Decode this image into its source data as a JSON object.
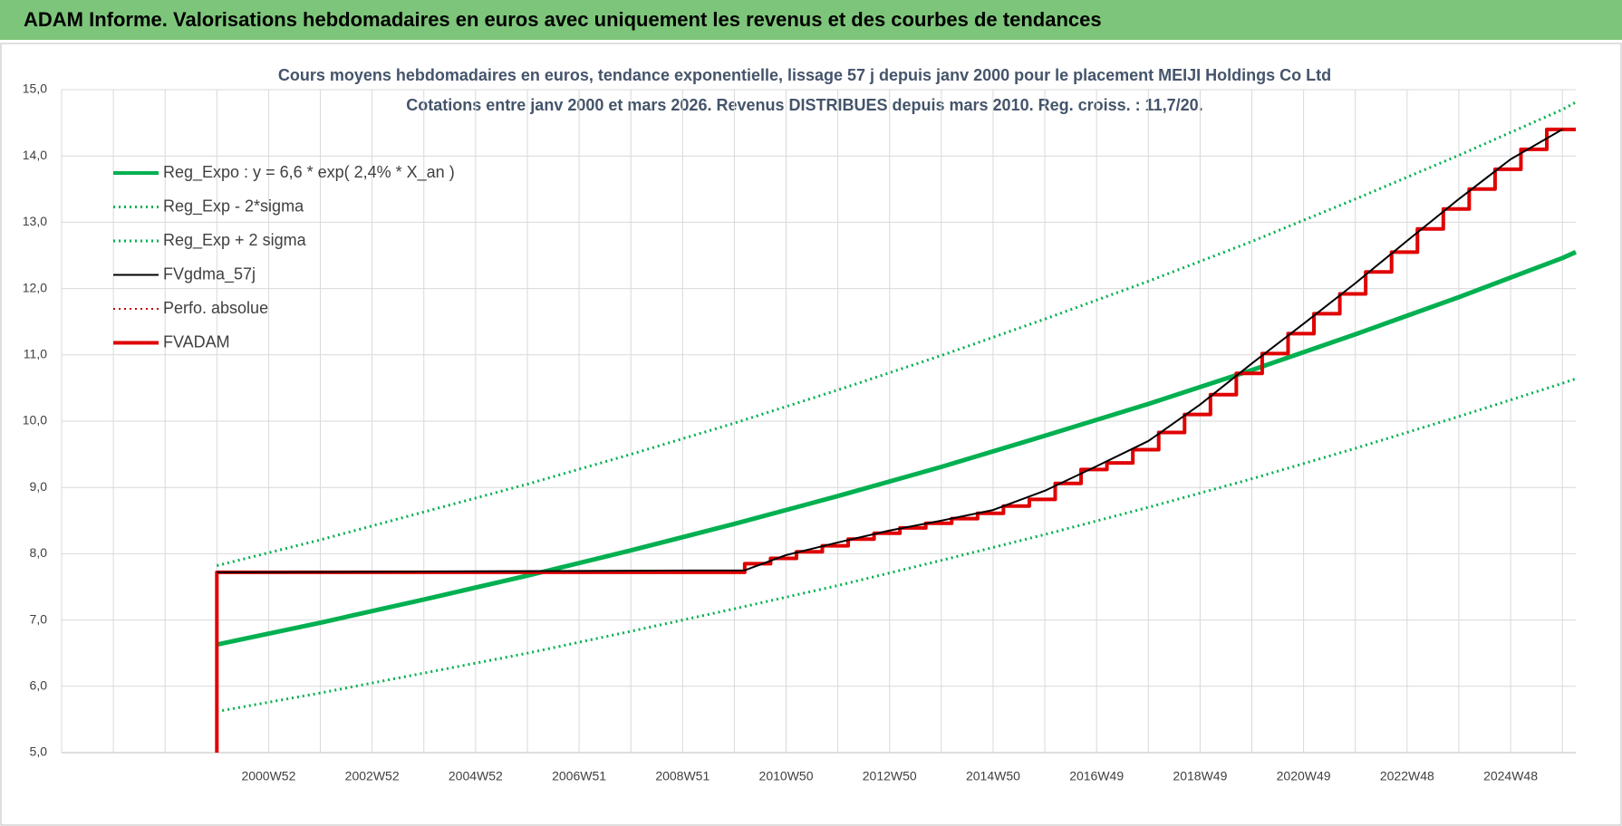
{
  "header": {
    "title": "ADAM Informe. Valorisations hebdomadaires en euros avec uniquement les revenus et des courbes de tendances"
  },
  "chart_data": {
    "type": "line",
    "title": "Cours moyens hebdomadaires en euros, tendance exponentielle, lissage 57 j depuis janv 2000 pour le placement MEIJI Holdings Co Ltd",
    "subtitle": "Cotations entre janv 2000 et mars 2026. Revenus DISTRIBUES depuis mars 2010. Reg. croiss. : 11,7/20.",
    "xlim": [
      1997,
      2026.26
    ],
    "xticks": [
      {
        "value": 2001,
        "label": "2000W52"
      },
      {
        "value": 2003,
        "label": "2002W52"
      },
      {
        "value": 2005,
        "label": "2004W52"
      },
      {
        "value": 2007,
        "label": "2006W51"
      },
      {
        "value": 2009,
        "label": "2008W51"
      },
      {
        "value": 2011,
        "label": "2010W50"
      },
      {
        "value": 2013,
        "label": "2012W50"
      },
      {
        "value": 2015,
        "label": "2014W50"
      },
      {
        "value": 2017,
        "label": "2016W49"
      },
      {
        "value": 2019,
        "label": "2018W49"
      },
      {
        "value": 2021,
        "label": "2020W49"
      },
      {
        "value": 2023,
        "label": "2022W48"
      },
      {
        "value": 2025,
        "label": "2024W48"
      }
    ],
    "ylim": [
      5,
      15
    ],
    "yticks": [
      {
        "value": 5,
        "label": "5,0"
      },
      {
        "value": 6,
        "label": "6,0"
      },
      {
        "value": 7,
        "label": "7,0"
      },
      {
        "value": 8,
        "label": "8,0"
      },
      {
        "value": 9,
        "label": "9,0"
      },
      {
        "value": 10,
        "label": "10,0"
      },
      {
        "value": 11,
        "label": "11,0"
      },
      {
        "value": 12,
        "label": "12,0"
      },
      {
        "value": 13,
        "label": "13,0"
      },
      {
        "value": 14,
        "label": "14,0"
      },
      {
        "value": 15,
        "label": "15,0"
      }
    ],
    "grid": true,
    "legend": "upper left",
    "series": [
      {
        "name": "Reg_Expo : y = 6,6 * exp( 2,4% *  X_an )",
        "color": "#00b050",
        "dash": "solid",
        "width": 5,
        "x": [
          2000,
          2002,
          2004,
          2006,
          2008,
          2010,
          2012,
          2014,
          2016,
          2018,
          2020,
          2022,
          2024,
          2026,
          2026.26
        ],
        "values": [
          6.63,
          6.96,
          7.31,
          7.67,
          8.05,
          8.45,
          8.87,
          9.31,
          9.78,
          10.26,
          10.77,
          11.31,
          11.87,
          12.46,
          12.55
        ]
      },
      {
        "name": "Reg_Exp - 2*sigma",
        "color": "#00b050",
        "dash": "dotted",
        "width": 3,
        "x": [
          2000,
          2002,
          2004,
          2006,
          2008,
          2010,
          2012,
          2014,
          2016,
          2018,
          2020,
          2022,
          2024,
          2026,
          2026.26
        ],
        "values": [
          5.62,
          5.9,
          6.2,
          6.5,
          6.83,
          7.17,
          7.52,
          7.9,
          8.29,
          8.7,
          9.13,
          9.59,
          10.07,
          10.57,
          10.64
        ]
      },
      {
        "name": "Reg_Exp + 2 sigma",
        "color": "#00b050",
        "dash": "dotted",
        "width": 3,
        "x": [
          2000,
          2002,
          2004,
          2006,
          2008,
          2010,
          2012,
          2014,
          2016,
          2018,
          2020,
          2022,
          2024,
          2026,
          2026.26
        ],
        "values": [
          7.82,
          8.21,
          8.63,
          9.05,
          9.5,
          9.97,
          10.47,
          10.99,
          11.54,
          12.11,
          12.71,
          13.35,
          14.01,
          14.7,
          14.81
        ]
      },
      {
        "name": "FVgdma_57j",
        "color": "#000000",
        "dash": "solid",
        "width": 2,
        "x": [
          2000,
          2010.2,
          2011,
          2012,
          2013,
          2014,
          2015,
          2016,
          2017,
          2018,
          2019,
          2020,
          2021,
          2022,
          2023,
          2024,
          2025,
          2026
        ],
        "values": [
          7.72,
          7.75,
          7.98,
          8.17,
          8.35,
          8.5,
          8.66,
          8.95,
          9.32,
          9.7,
          10.25,
          10.87,
          11.47,
          12.08,
          12.72,
          13.35,
          13.95,
          14.4
        ]
      },
      {
        "name": "Perfo. absolue",
        "color": "#c00000",
        "dash": "dotted",
        "width": 2,
        "x": [],
        "values": []
      },
      {
        "name": "FVADAM",
        "color": "#e00000",
        "dash": "solid",
        "width": 4,
        "step": "after",
        "x": [
          2000,
          2000,
          2010.2,
          2010.7,
          2011.2,
          2011.7,
          2012.2,
          2012.7,
          2013.2,
          2013.7,
          2014.2,
          2014.7,
          2015.2,
          2015.7,
          2016.2,
          2016.7,
          2017.2,
          2017.7,
          2018.2,
          2018.7,
          2019.2,
          2019.7,
          2020.2,
          2020.7,
          2021.2,
          2021.7,
          2022.2,
          2022.7,
          2023.2,
          2023.7,
          2024.2,
          2024.7,
          2025.2,
          2025.7,
          2026.26
        ],
        "values": [
          5.0,
          7.72,
          7.85,
          7.93,
          8.03,
          8.12,
          8.22,
          8.31,
          8.39,
          8.46,
          8.53,
          8.61,
          8.72,
          8.82,
          9.06,
          9.27,
          9.37,
          9.57,
          9.83,
          10.1,
          10.4,
          10.72,
          11.02,
          11.32,
          11.62,
          11.92,
          12.25,
          12.55,
          12.9,
          13.2,
          13.5,
          13.8,
          14.1,
          14.4,
          14.4
        ]
      }
    ]
  }
}
